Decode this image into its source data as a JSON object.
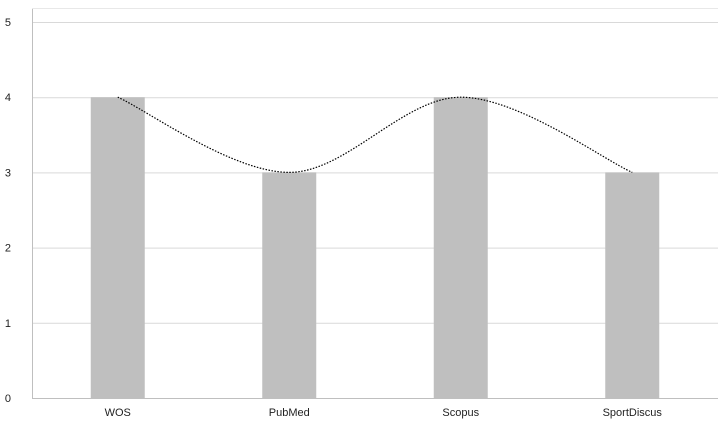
{
  "chart_data": {
    "type": "bar",
    "categories": [
      "WOS",
      "PubMed",
      "Scopus",
      "SportDiscus"
    ],
    "values": [
      4,
      3,
      4,
      3
    ],
    "title": "",
    "xlabel": "",
    "ylabel": "",
    "ylim": [
      0,
      5
    ],
    "yticks": [
      0,
      1,
      2,
      3,
      4,
      5
    ],
    "grid": true,
    "legend": "none",
    "trendline": {
      "style": "dotted smooth curve",
      "values": [
        4,
        3,
        4,
        3
      ]
    },
    "colors": {
      "bar": "#bfbfbf",
      "grid": "#d9d9d9",
      "axis": "#bfbfbf",
      "trendline": "#000000"
    }
  }
}
